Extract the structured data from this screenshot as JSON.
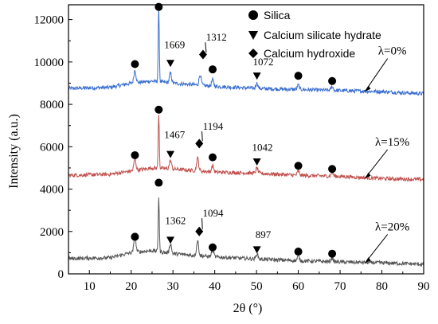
{
  "chart_data": {
    "type": "line",
    "xlabel": "2θ (°)",
    "ylabel": "Intensity (a.u.)",
    "xlim": [
      5,
      90
    ],
    "ylim": [
      0,
      12700
    ],
    "x_ticks": [
      10,
      20,
      30,
      40,
      50,
      60,
      70,
      80,
      90
    ],
    "y_ticks": [
      0,
      2000,
      4000,
      6000,
      8000,
      10000,
      12000
    ],
    "grid": false,
    "legend": {
      "placement": "top-center",
      "entries": [
        {
          "marker": "circle",
          "label": "Silica"
        },
        {
          "marker": "triangle-down",
          "label": "Calcium silicate hydrate"
        },
        {
          "marker": "diamond",
          "label": "Calcium hydroxide"
        }
      ]
    },
    "series": [
      {
        "label": "λ=0%",
        "color": "#3a6fd0",
        "baseline": [
          [
            5,
            8750
          ],
          [
            15,
            8800
          ],
          [
            20,
            9000
          ],
          [
            25,
            9100
          ],
          [
            30,
            9000
          ],
          [
            40,
            8850
          ],
          [
            50,
            8750
          ],
          [
            60,
            8700
          ],
          [
            70,
            8650
          ],
          [
            80,
            8600
          ],
          [
            90,
            8500
          ]
        ],
        "peaks": [
          [
            20.9,
            600
          ],
          [
            26.6,
            3500
          ],
          [
            29.4,
            450
          ],
          [
            36.5,
            500
          ],
          [
            39.5,
            300
          ],
          [
            50.1,
            250
          ],
          [
            60.0,
            200
          ],
          [
            68.1,
            180
          ]
        ],
        "annotations": [
          "1669",
          "1312",
          "1072"
        ]
      },
      {
        "label": "λ=15%",
        "color": "#c0504d",
        "baseline": [
          [
            5,
            4650
          ],
          [
            15,
            4700
          ],
          [
            20,
            4850
          ],
          [
            25,
            5000
          ],
          [
            30,
            4950
          ],
          [
            40,
            4800
          ],
          [
            50,
            4750
          ],
          [
            60,
            4650
          ],
          [
            70,
            4600
          ],
          [
            80,
            4500
          ],
          [
            90,
            4450
          ]
        ],
        "peaks": [
          [
            20.9,
            550
          ],
          [
            26.6,
            2600
          ],
          [
            29.4,
            400
          ],
          [
            35.9,
            600
          ],
          [
            39.5,
            300
          ],
          [
            50.1,
            250
          ],
          [
            60.0,
            200
          ],
          [
            68.1,
            180
          ]
        ],
        "annotations": [
          "1467",
          "1194",
          "1042"
        ]
      },
      {
        "label": "λ=20%",
        "color": "#555555",
        "baseline": [
          [
            5,
            720
          ],
          [
            15,
            760
          ],
          [
            20,
            1000
          ],
          [
            25,
            1100
          ],
          [
            30,
            950
          ],
          [
            40,
            800
          ],
          [
            50,
            700
          ],
          [
            60,
            620
          ],
          [
            70,
            560
          ],
          [
            80,
            520
          ],
          [
            90,
            450
          ]
        ],
        "peaks": [
          [
            20.9,
            700
          ],
          [
            26.6,
            2600
          ],
          [
            29.4,
            450
          ],
          [
            35.9,
            700
          ],
          [
            39.5,
            350
          ],
          [
            50.1,
            250
          ],
          [
            60.0,
            200
          ],
          [
            68.1,
            180
          ]
        ],
        "annotations": [
          "1362",
          "1094",
          "897"
        ]
      }
    ],
    "markers": [
      {
        "type": "circle",
        "x": 20.9,
        "y": 9900
      },
      {
        "type": "circle",
        "x": 26.6,
        "y": 12600
      },
      {
        "type": "triangle-down",
        "x": 29.4,
        "y": 9950
      },
      {
        "type": "diamond",
        "x": 37.2,
        "y": 10350
      },
      {
        "type": "circle",
        "x": 39.5,
        "y": 9650
      },
      {
        "type": "triangle-down",
        "x": 50.1,
        "y": 9350
      },
      {
        "type": "circle",
        "x": 60.0,
        "y": 9350
      },
      {
        "type": "circle",
        "x": 68.1,
        "y": 9100
      },
      {
        "type": "circle",
        "x": 20.9,
        "y": 5600
      },
      {
        "type": "circle",
        "x": 26.6,
        "y": 7750
      },
      {
        "type": "triangle-down",
        "x": 29.4,
        "y": 5650
      },
      {
        "type": "diamond",
        "x": 36.3,
        "y": 6150
      },
      {
        "type": "circle",
        "x": 39.5,
        "y": 5500
      },
      {
        "type": "triangle-down",
        "x": 50.1,
        "y": 5300
      },
      {
        "type": "circle",
        "x": 60.0,
        "y": 5100
      },
      {
        "type": "circle",
        "x": 68.1,
        "y": 4950
      },
      {
        "type": "circle",
        "x": 20.9,
        "y": 1750
      },
      {
        "type": "circle",
        "x": 26.6,
        "y": 4300
      },
      {
        "type": "triangle-down",
        "x": 29.4,
        "y": 1600
      },
      {
        "type": "diamond",
        "x": 36.3,
        "y": 2000
      },
      {
        "type": "circle",
        "x": 39.5,
        "y": 1250
      },
      {
        "type": "triangle-down",
        "x": 50.1,
        "y": 1150
      },
      {
        "type": "circle",
        "x": 60.0,
        "y": 1050
      },
      {
        "type": "circle",
        "x": 68.1,
        "y": 950
      }
    ],
    "peak_labels": [
      {
        "text": "1669",
        "x": 30.4,
        "y": 10650
      },
      {
        "text": "1312",
        "x": 40.4,
        "y": 11000
      },
      {
        "text": "1072",
        "x": 51.6,
        "y": 9850
      },
      {
        "text": "1467",
        "x": 30.4,
        "y": 6400
      },
      {
        "text": "1194",
        "x": 39.6,
        "y": 6800
      },
      {
        "text": "1042",
        "x": 51.4,
        "y": 5800
      },
      {
        "text": "1362",
        "x": 30.6,
        "y": 2350
      },
      {
        "text": "1094",
        "x": 39.6,
        "y": 2700
      },
      {
        "text": "897",
        "x": 51.6,
        "y": 1700
      }
    ],
    "lambda_labels": [
      {
        "text": "λ=0%",
        "x": 82.5,
        "y": 10350,
        "arrow_to": [
          76.0,
          8620
        ]
      },
      {
        "text": "λ=15%",
        "x": 82.5,
        "y": 6050,
        "arrow_to": [
          76.0,
          4520
        ]
      },
      {
        "text": "λ=20%",
        "x": 82.5,
        "y": 2050,
        "arrow_to": [
          76.0,
          520
        ]
      }
    ]
  }
}
